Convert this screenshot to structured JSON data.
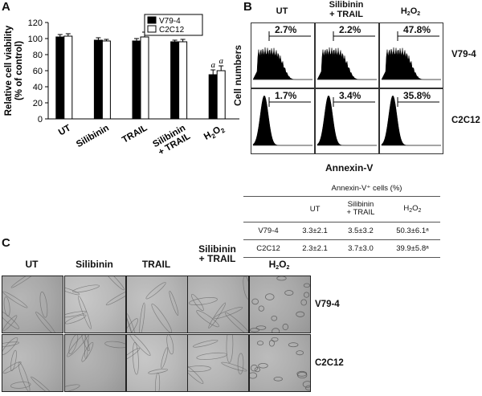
{
  "panels": {
    "a": "A",
    "b": "B",
    "c": "C"
  },
  "chart_data": {
    "type": "bar",
    "categories": [
      "UT",
      "Silibinin",
      "TRAIL",
      "Silibinin + TRAIL",
      "H2O2"
    ],
    "series": [
      {
        "name": "V79-4",
        "values": [
          102,
          98,
          97,
          96,
          55
        ],
        "errors": [
          3,
          3,
          3,
          2,
          6
        ],
        "color": "#000000"
      },
      {
        "name": "C2C12",
        "values": [
          103,
          97,
          102,
          96,
          60
        ],
        "errors": [
          3,
          2,
          6,
          3,
          6
        ],
        "color": "#ffffff"
      }
    ],
    "significance": [
      "",
      "",
      "",
      "",
      "a"
    ],
    "ylabel": "Relative cell viability\n(% of control)",
    "ylim": [
      0,
      120
    ],
    "yticks": [
      "0",
      "20",
      "40",
      "60",
      "80",
      "100",
      "120"
    ],
    "sig_mark": "a"
  },
  "flow": {
    "columns": [
      "UT",
      "Silibinin\n+ TRAIL",
      "H2O2"
    ],
    "rows": [
      "V79-4",
      "C2C12"
    ],
    "percents": [
      [
        "2.7%",
        "2.2%",
        "47.8%"
      ],
      [
        "1.7%",
        "3.4%",
        "35.8%"
      ]
    ],
    "ylabel": "Cell numbers",
    "xlabel": "Annexin-V"
  },
  "annexin_table": {
    "title": "Annexin-V⁺ cells (%)",
    "headers": [
      "UT",
      "Silibinin\n+ TRAIL",
      "H2O2"
    ],
    "rows": [
      {
        "label": "V79-4",
        "values": [
          "3.3±2.1",
          "3.5±3.2",
          "50.3±6.1ᵃ"
        ]
      },
      {
        "label": "C2C12",
        "values": [
          "2.3±2.1",
          "3.7±3.0",
          "39.9±5.8ᵃ"
        ]
      }
    ]
  },
  "micrographs": {
    "columns": [
      "UT",
      "Silibinin",
      "TRAIL",
      "Silibinin\n+ TRAIL",
      "H2O2"
    ],
    "rows": [
      "V79-4",
      "C2C12"
    ]
  }
}
